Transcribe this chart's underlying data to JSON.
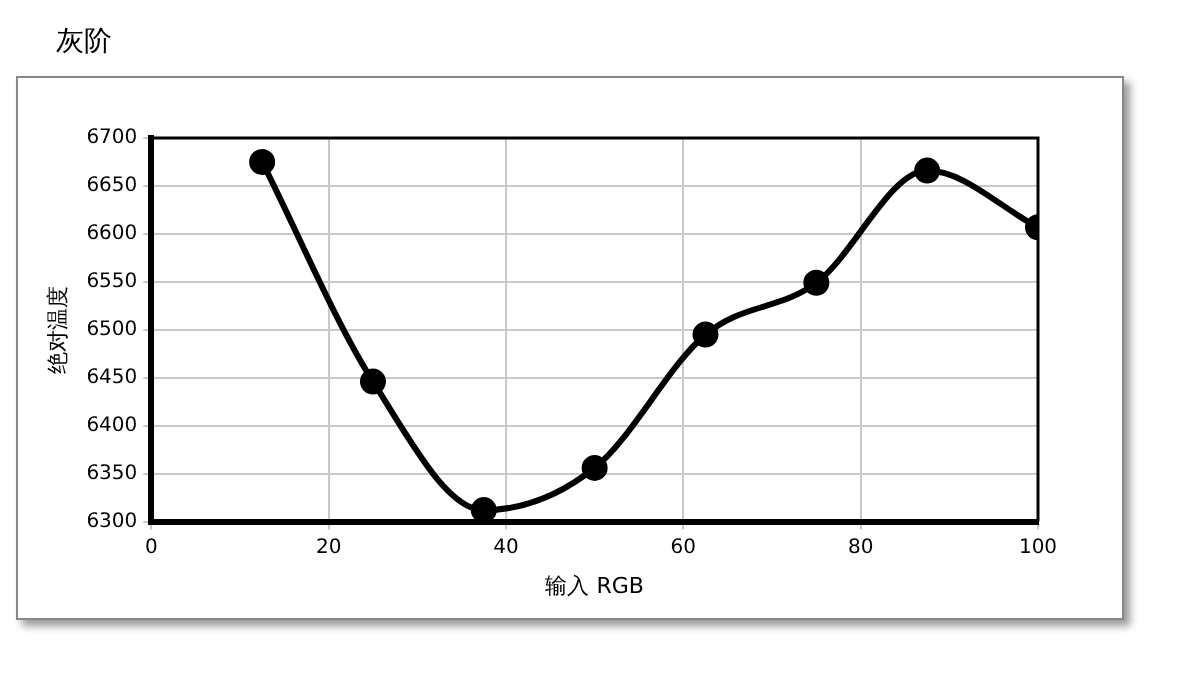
{
  "chart_data": {
    "type": "line",
    "title": "灰阶",
    "xlabel": "输入 RGB",
    "ylabel": "绝对温度",
    "x": [
      12.5,
      25,
      37.5,
      50,
      62.5,
      75,
      87.5,
      100
    ],
    "series": [
      {
        "color": "#000000",
        "values": [
          6675,
          6446,
          6312,
          6356,
          6495,
          6549,
          6666,
          6607
        ]
      }
    ],
    "xlim": [
      0,
      100
    ],
    "xticks": [
      0,
      20,
      40,
      60,
      80,
      100
    ],
    "ylim": [
      6300,
      6700
    ],
    "yticks": [
      6300,
      6350,
      6400,
      6450,
      6500,
      6550,
      6600,
      6650,
      6700
    ],
    "grid": true,
    "legend": false,
    "marker": "circle",
    "line_style": "solid"
  }
}
